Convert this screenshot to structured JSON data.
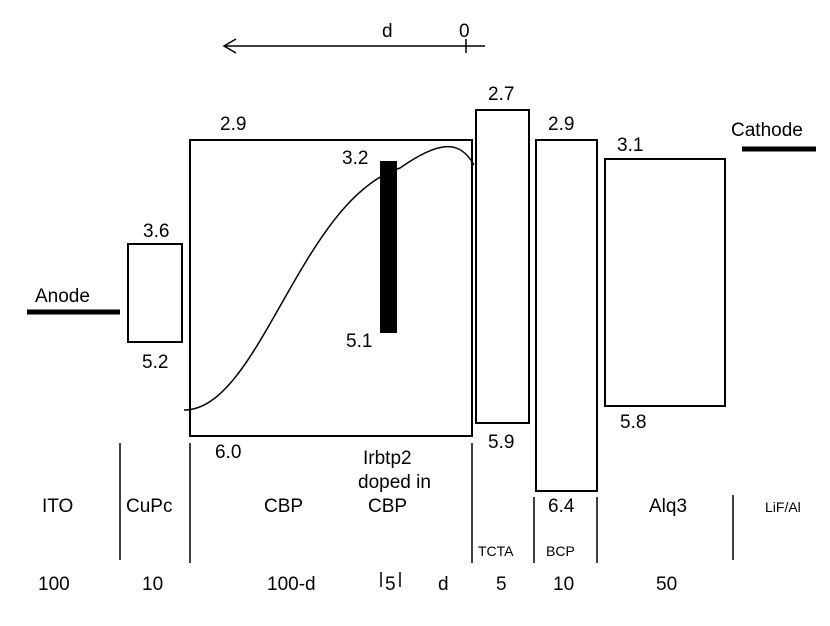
{
  "arrow": {
    "label_d": "d",
    "label_zero": "0"
  },
  "electrodes": {
    "anode": "Anode",
    "cathode": "Cathode"
  },
  "levels": {
    "cupc_lumo": "3.6",
    "cupc_homo": "5.2",
    "cbp_lumo": "2.9",
    "cbp_homo": "6.0",
    "dopant_lumo": "3.2",
    "dopant_homo": "5.1",
    "tcta_lumo": "2.7",
    "tcta_homo": "5.9",
    "bcp_lumo": "2.9",
    "bcp_homo": "6.4",
    "alq3_lumo": "3.1",
    "alq3_homo": "5.8"
  },
  "dopant": {
    "line1": "Irbtp2",
    "line2": "doped in",
    "line3": "CBP"
  },
  "layers": {
    "ito": "ITO",
    "cupc": "CuPc",
    "cbp": "CBP",
    "tcta": "TCTA",
    "bcp": "BCP",
    "alq3": "Alq3",
    "lif": "LiF/Al"
  },
  "thickness": {
    "ito": "100",
    "cupc": "10",
    "cbp": "100-d",
    "dopant": "5",
    "d": "d",
    "tcta": "5",
    "bcp": "10",
    "alq3": "50"
  }
}
